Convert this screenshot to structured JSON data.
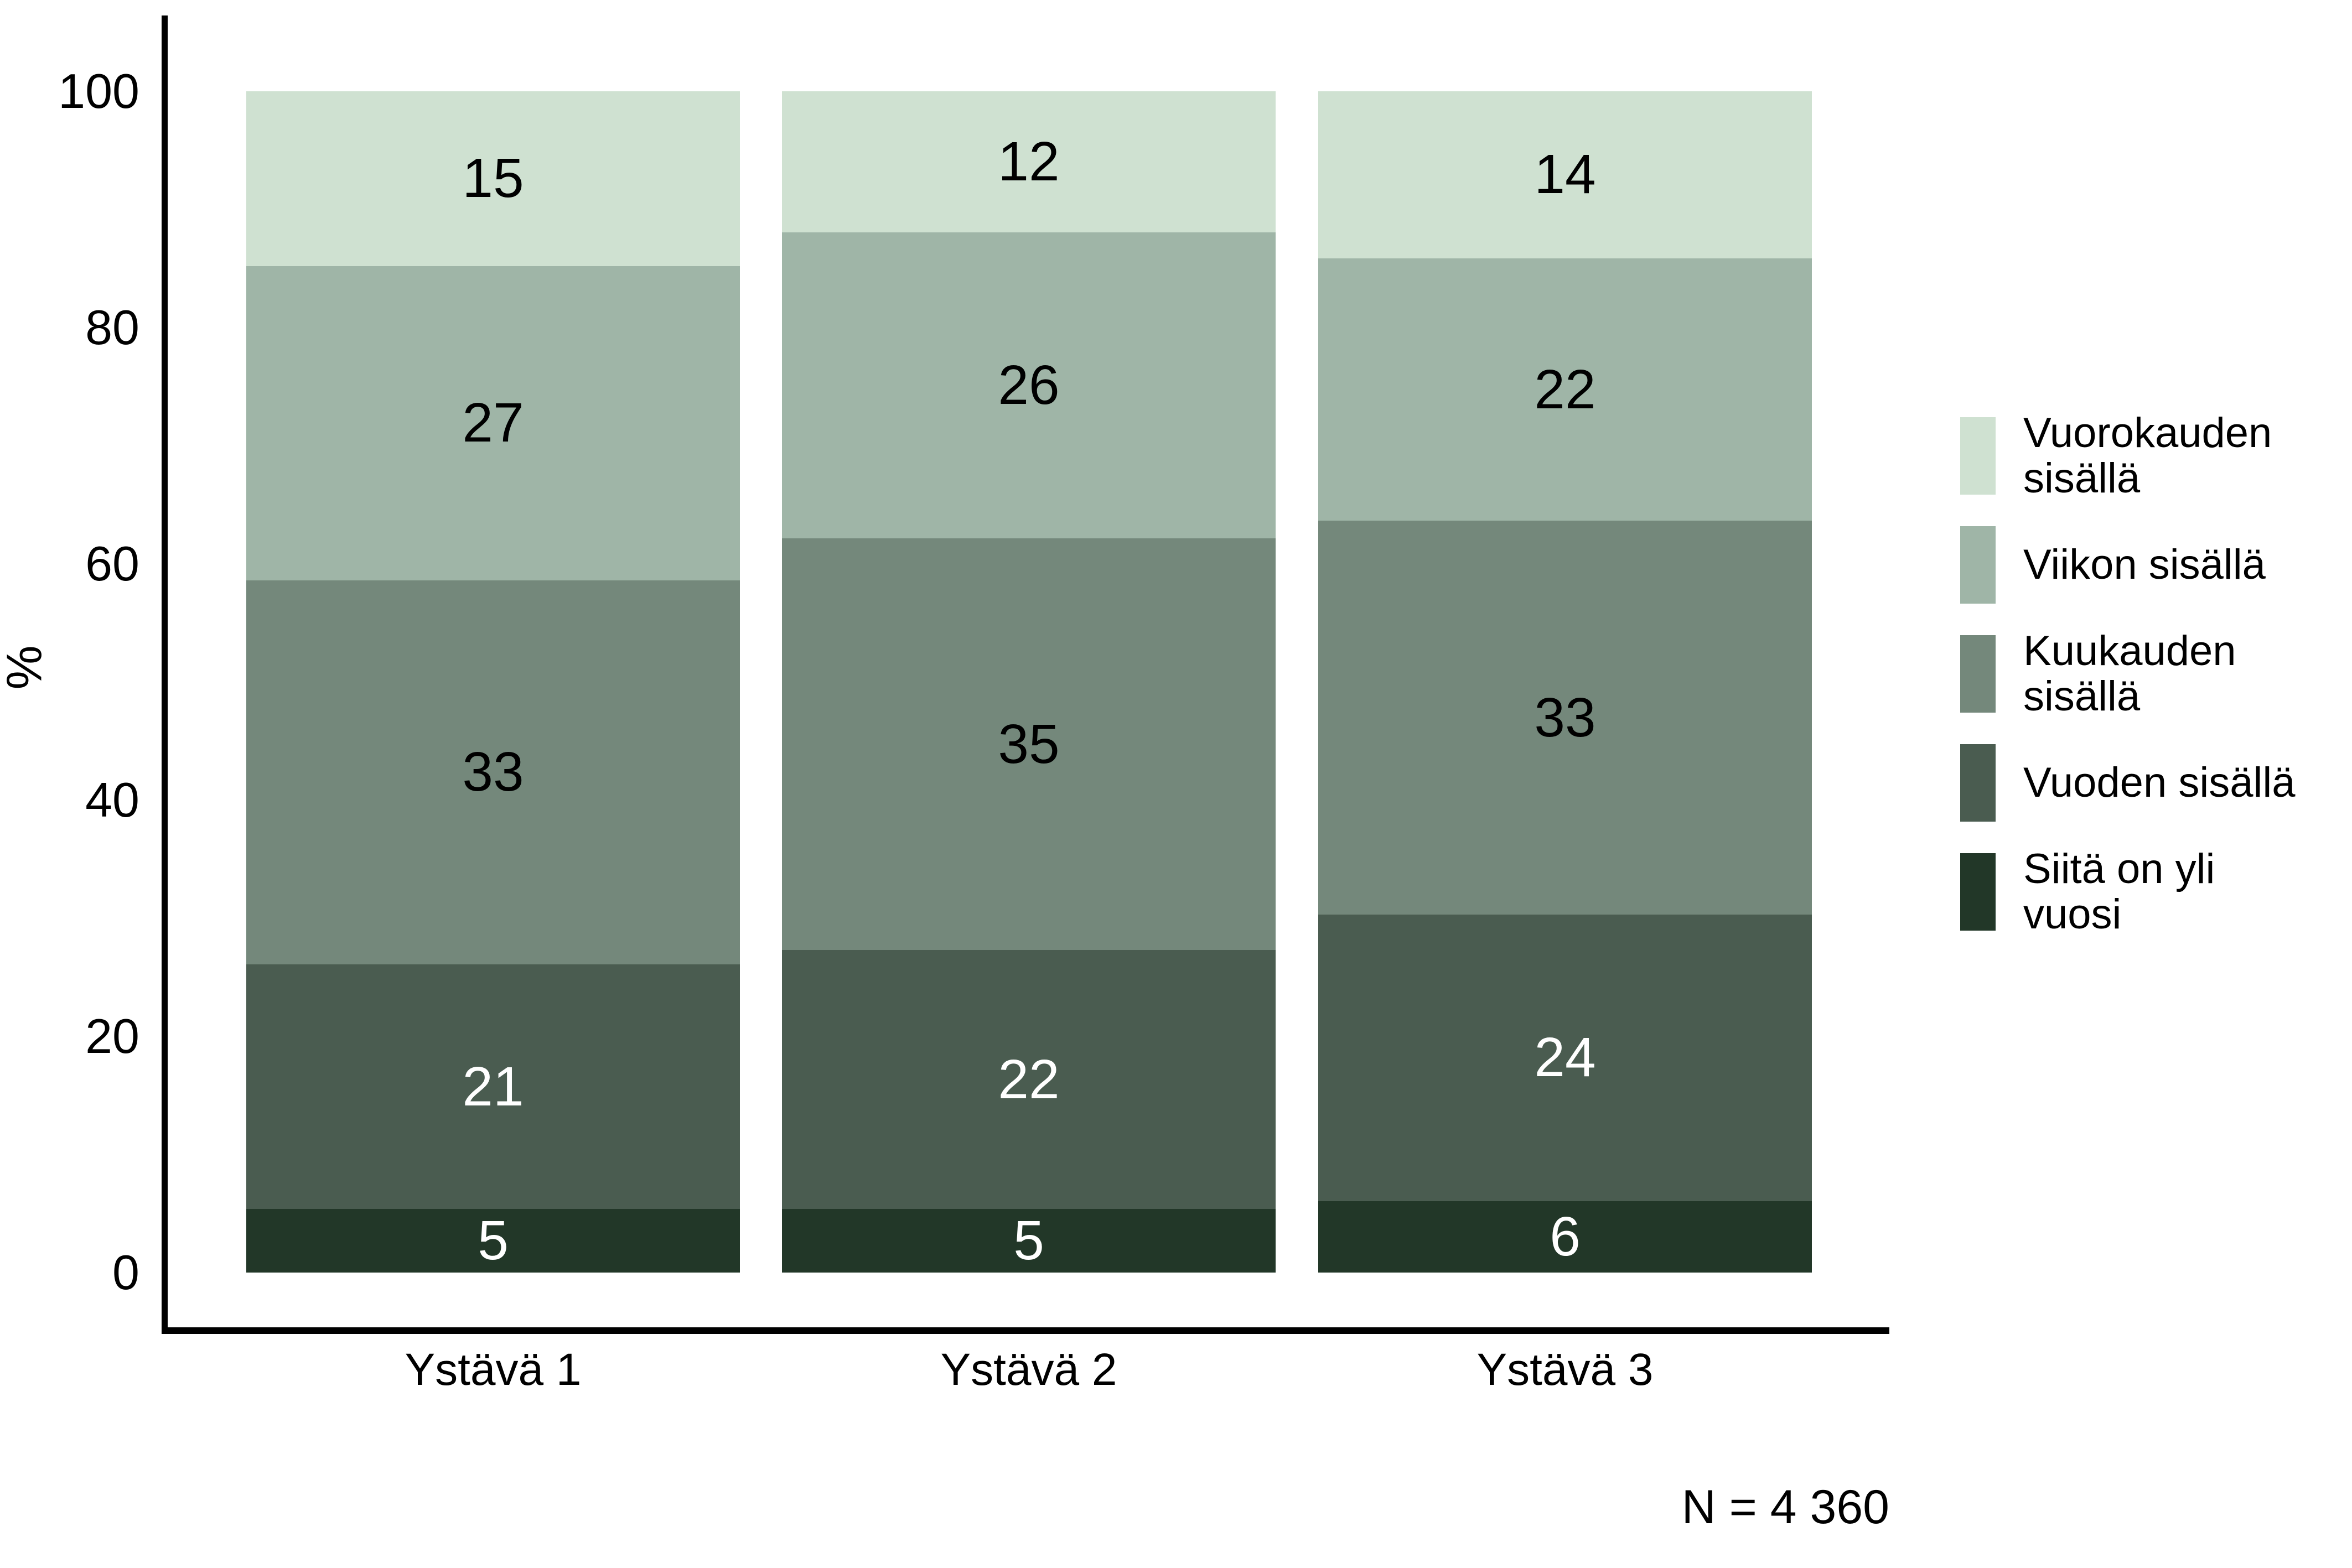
{
  "chart_data": {
    "type": "bar",
    "stacked": true,
    "title": "",
    "ylabel": "%",
    "xlabel": "",
    "ylim": [
      0,
      100
    ],
    "yticks": [
      0,
      20,
      40,
      60,
      80,
      100
    ],
    "grid": false,
    "legend_position": "right",
    "categories": [
      "Ystävä 1",
      "Ystävä 2",
      "Ystävä 3"
    ],
    "series": [
      {
        "name": "Vuorokauden sisällä",
        "color": "#cfe1d1",
        "label_color": "#000000",
        "values": [
          15,
          12,
          14
        ]
      },
      {
        "name": "Viikon sisällä",
        "color": "#9fb5a7",
        "label_color": "#000000",
        "values": [
          27,
          26,
          22
        ]
      },
      {
        "name": "Kuukauden sisällä",
        "color": "#74887b",
        "label_color": "#000000",
        "values": [
          33,
          35,
          33
        ]
      },
      {
        "name": "Vuoden sisällä",
        "color": "#4a5c50",
        "label_color": "#ffffff",
        "values": [
          21,
          22,
          24
        ]
      },
      {
        "name": "Siitä on yli vuosi",
        "color": "#223728",
        "label_color": "#ffffff",
        "values": [
          5,
          5,
          6
        ]
      }
    ],
    "note": "N = 4 360",
    "axis_color": "#000000",
    "background_color": "#ffffff"
  }
}
